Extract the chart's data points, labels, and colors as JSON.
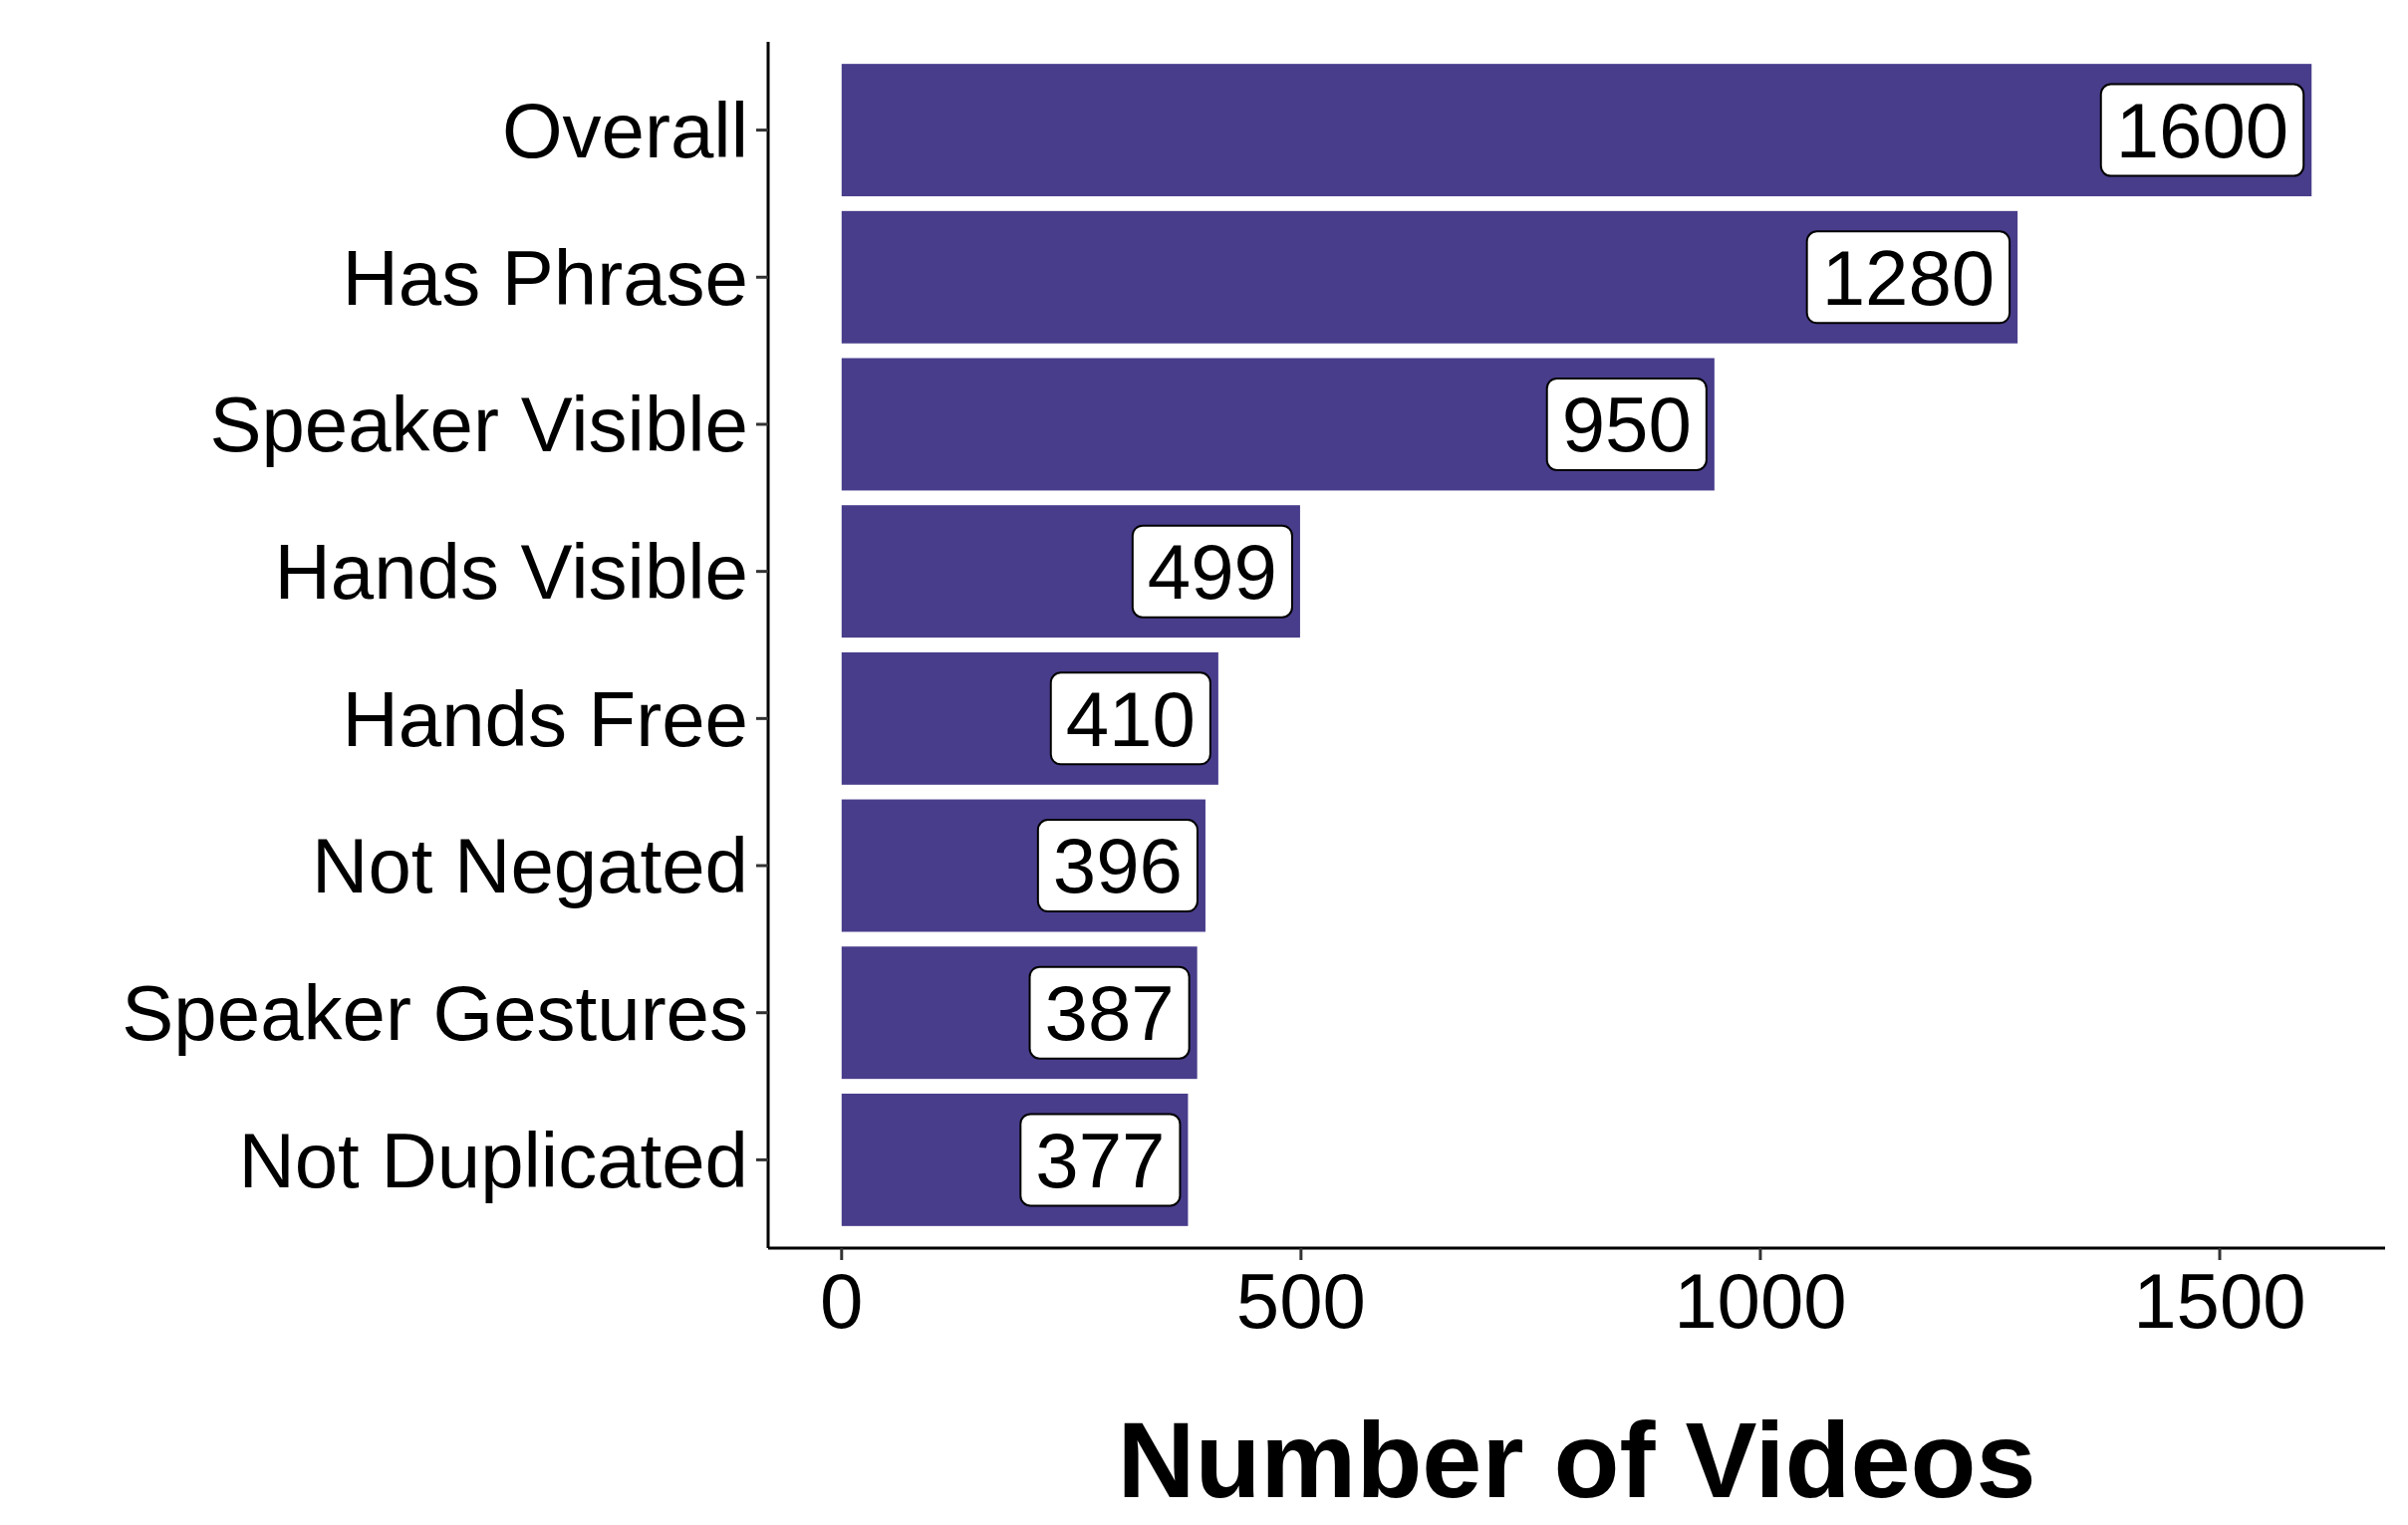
{
  "chart_data": {
    "type": "bar",
    "orientation": "horizontal",
    "xlabel": "Number of Videos",
    "categories": [
      "Overall",
      "Has Phrase",
      "Speaker Visible",
      "Hands Visible",
      "Hands Free",
      "Not Negated",
      "Speaker Gestures",
      "Not Duplicated"
    ],
    "values": [
      1600,
      1280,
      950,
      499,
      410,
      396,
      387,
      377
    ],
    "color": "#483d8b",
    "xlim": [
      -80,
      1680
    ],
    "xticks": [
      0,
      500,
      1000,
      1500
    ],
    "data_labels": true,
    "grid": false
  }
}
